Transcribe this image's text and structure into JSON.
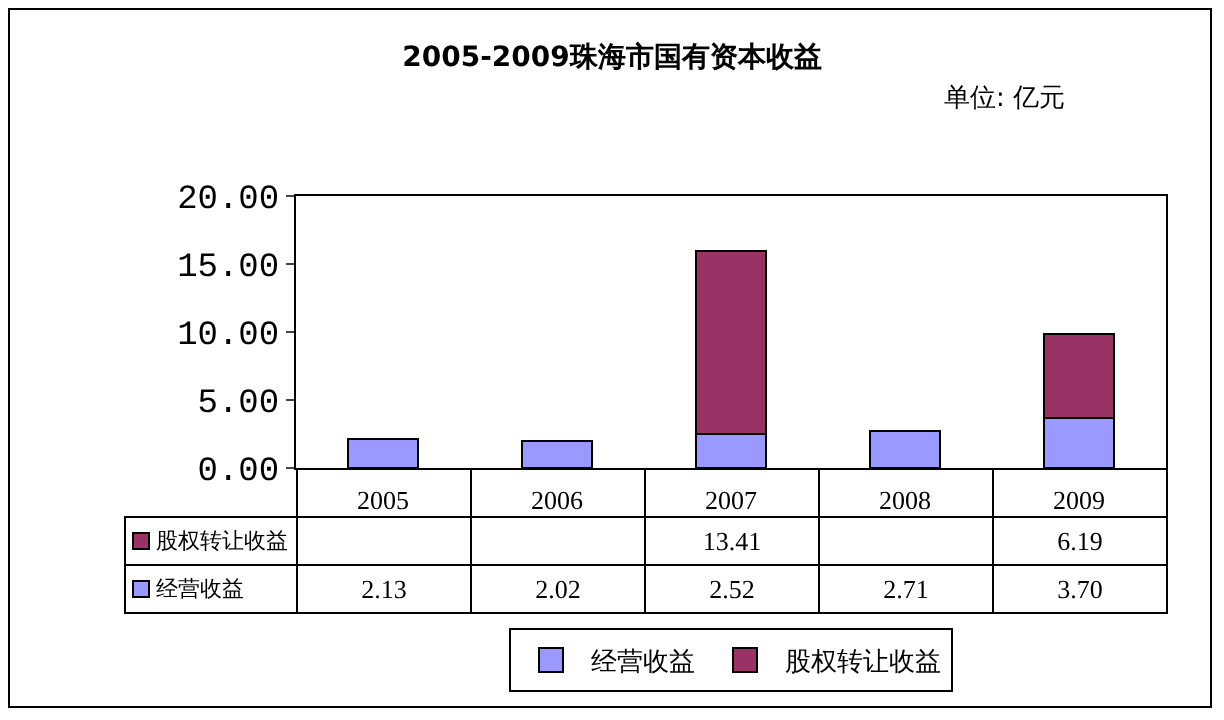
{
  "chart_data": {
    "type": "bar",
    "stacked": true,
    "title": "2005-2009珠海市国有资本收益",
    "annotations": [
      "单位: 亿元"
    ],
    "categories": [
      "2005",
      "2006",
      "2007",
      "2008",
      "2009"
    ],
    "series": [
      {
        "name": "经营收益",
        "color": "#9999ff",
        "values": [
          2.13,
          2.02,
          2.52,
          2.71,
          3.7
        ],
        "value_labels": [
          "2.13",
          "2.02",
          "2.52",
          "2.71",
          "3.70"
        ]
      },
      {
        "name": "股权转让收益",
        "color": "#993366",
        "values": [
          null,
          null,
          13.41,
          null,
          6.19
        ],
        "value_labels": [
          null,
          null,
          "13.41",
          null,
          "6.19"
        ]
      }
    ],
    "ylim": [
      0,
      20
    ],
    "yticks": [
      {
        "value": 0,
        "label": "0.00"
      },
      {
        "value": 5,
        "label": "5.00"
      },
      {
        "value": 10,
        "label": "10.00"
      },
      {
        "value": 15,
        "label": "15.00"
      },
      {
        "value": 20,
        "label": "20.00"
      }
    ],
    "grid": false,
    "legend": "bottom"
  }
}
